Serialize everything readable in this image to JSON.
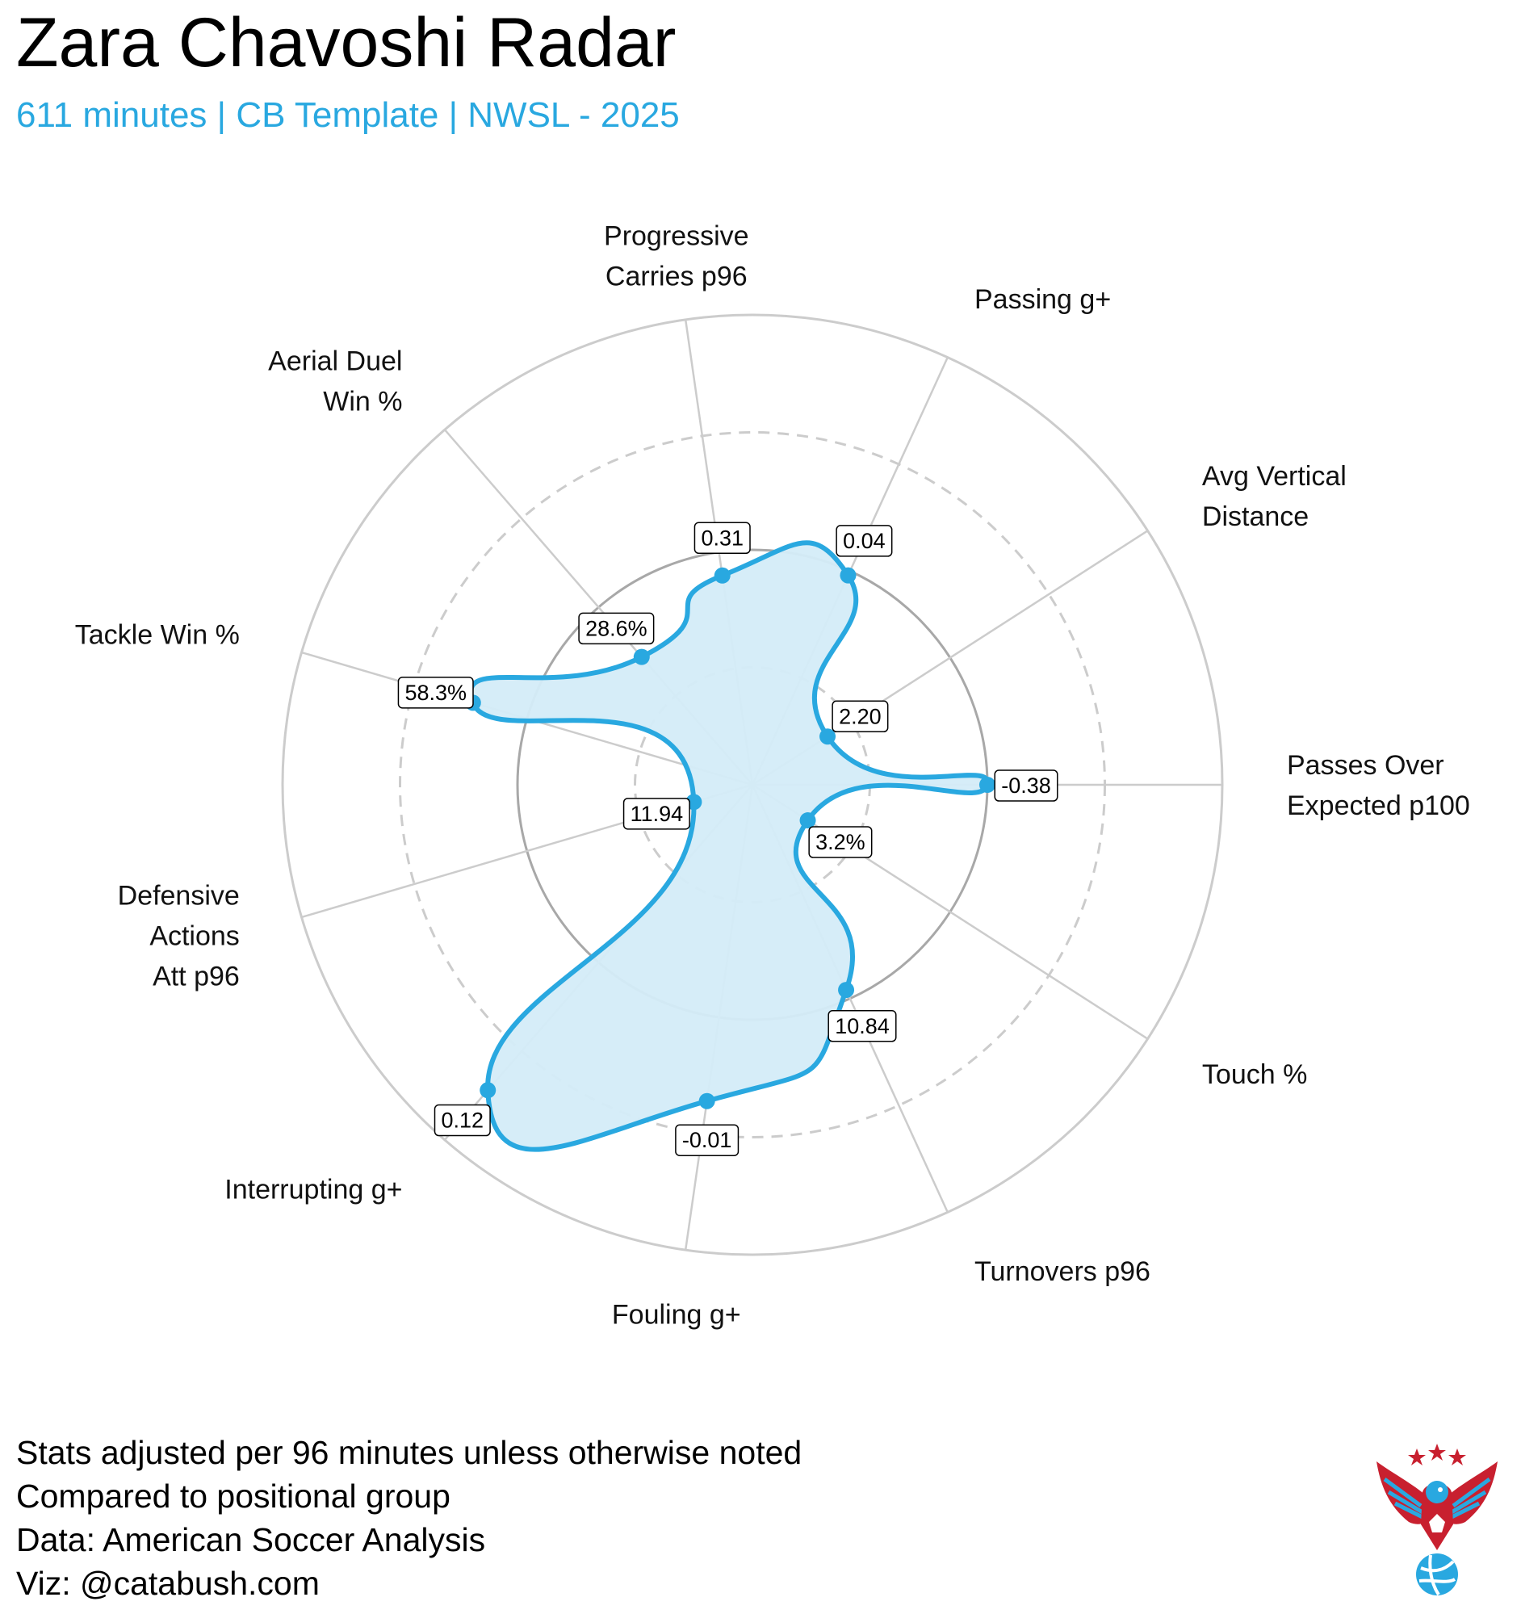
{
  "title": "Zara Chavoshi Radar",
  "subtitle": "611 minutes | CB Template | NWSL - 2025",
  "notes": [
    "Stats adjusted per 96 minutes unless otherwise noted",
    "Compared to positional group",
    "Data: American Soccer Analysis",
    "Viz: @catabush.com"
  ],
  "colors": {
    "accent": "#29a8e0",
    "fill": "#d4ecf8",
    "grid": "#cccccc",
    "logo_red": "#c8202f",
    "logo_blue": "#29a8e0"
  },
  "logo": "eagle-soccer-crest",
  "chart_data": {
    "type": "radar",
    "series": [
      {
        "axes": [
          {
            "axis": [
              "Passes Over",
              "Expected p100"
            ],
            "value_label": "-0.38",
            "percentile": 50
          },
          {
            "axis": [
              "Avg Vertical",
              "Distance"
            ],
            "value_label": "2.20",
            "percentile": 19
          },
          {
            "axis": [
              "Passing g+"
            ],
            "value_label": "0.04",
            "percentile": 49
          },
          {
            "axis": [
              "Progressive",
              "Carries p96"
            ],
            "value_label": "0.31",
            "percentile": 45
          },
          {
            "axis": [
              "Aerial Duel",
              "Win %"
            ],
            "value_label": "28.6%",
            "percentile": 36
          },
          {
            "axis": [
              "Tackle Win %"
            ],
            "value_label": "58.3%",
            "percentile": 62
          },
          {
            "axis": [
              "Defensive",
              "Actions",
              "Att p96"
            ],
            "value_label": "11.94",
            "percentile": 13
          },
          {
            "axis": [
              "Interrupting g+"
            ],
            "value_label": "0.12",
            "percentile": 86
          },
          {
            "axis": [
              "Fouling g+"
            ],
            "value_label": "-0.01",
            "percentile": 68
          },
          {
            "axis": [
              "Turnovers p96"
            ],
            "value_label": "10.84",
            "percentile": 48
          },
          {
            "axis": [
              "Touch %"
            ],
            "value_label": "3.2%",
            "percentile": 14
          }
        ]
      }
    ],
    "rings": [
      25,
      50,
      75,
      100
    ],
    "range": [
      0,
      100
    ]
  }
}
